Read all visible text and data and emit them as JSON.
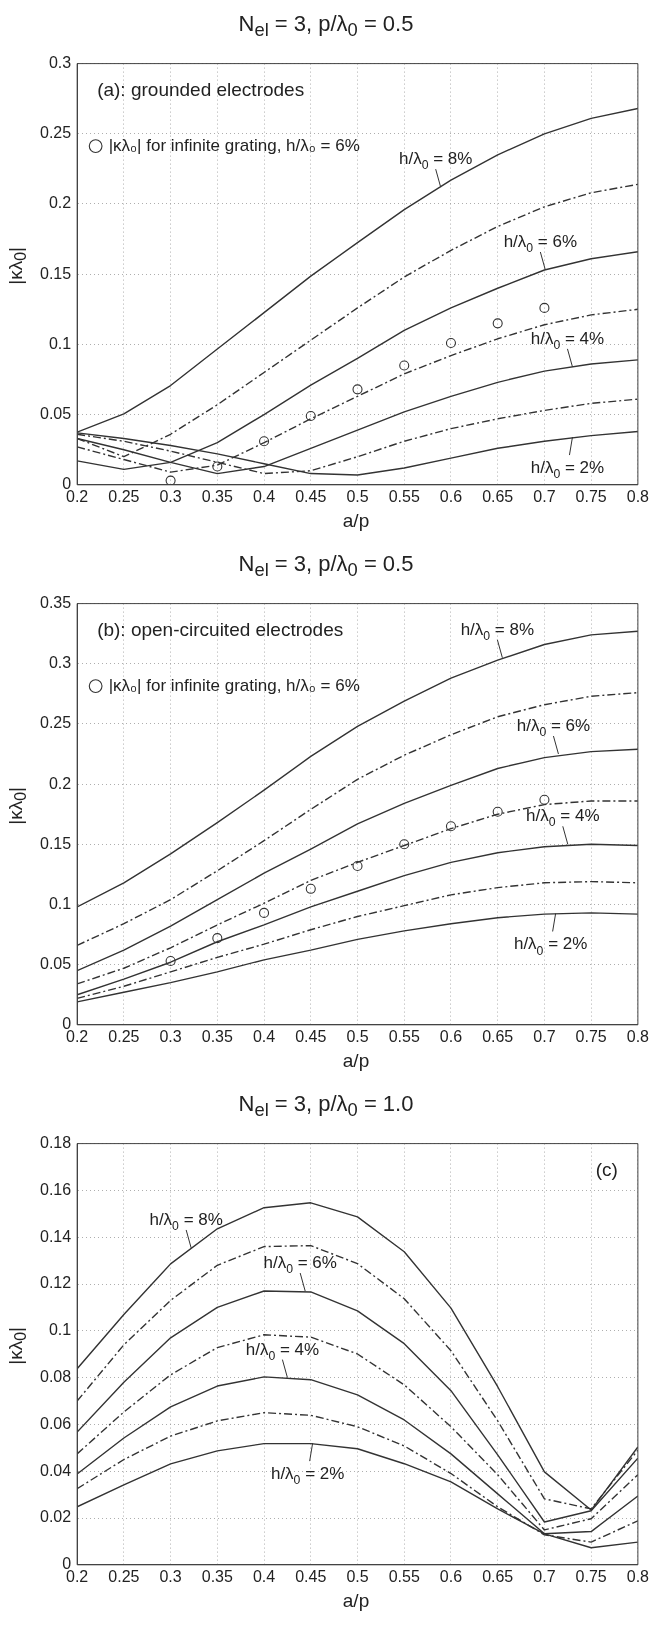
{
  "chart_data": [
    {
      "type": "line",
      "title": "N$_{el}$ = 3, p/λ$_{0}$ = 0.5",
      "xlabel": "a/p",
      "ylabel": "|κλ$_{0}$|",
      "x": [
        0.2,
        0.25,
        0.3,
        0.35,
        0.4,
        0.45,
        0.5,
        0.55,
        0.6,
        0.65,
        0.7,
        0.75,
        0.8
      ],
      "xlim": [
        0.2,
        0.8
      ],
      "xticks": [
        0.2,
        0.25,
        0.3,
        0.35,
        0.4,
        0.45,
        0.5,
        0.55,
        0.6,
        0.65,
        0.7,
        0.75,
        0.8
      ],
      "ylim": [
        0,
        0.3
      ],
      "yticks": [
        0,
        0.05,
        0.1,
        0.15,
        0.2,
        0.25,
        0.3
      ],
      "grid": true,
      "legend": "top left",
      "series": [
        {
          "color": "#333333",
          "line_style": "solid",
          "values": [
            0.0375,
            0.0505,
            0.0707,
            0.0967,
            0.1226,
            0.1486,
            0.1725,
            0.196,
            0.217,
            0.235,
            0.25,
            0.261,
            0.268
          ]
        },
        {
          "color": "#333333",
          "line_style": "dashed",
          "values": [
            0.033,
            0.02,
            0.036,
            0.057,
            0.08,
            0.103,
            0.126,
            0.148,
            0.167,
            0.184,
            0.198,
            0.208,
            0.214
          ]
        },
        {
          "color": "#333333",
          "line_style": "solid",
          "values": [
            0.017,
            0.011,
            0.016,
            0.03,
            0.05,
            0.071,
            0.09,
            0.11,
            0.126,
            0.14,
            0.153,
            0.161,
            0.166
          ]
        },
        {
          "color": "#333333",
          "line_style": "dashed",
          "values": [
            0.027,
            0.018,
            0.009,
            0.014,
            0.03,
            0.047,
            0.063,
            0.079,
            0.092,
            0.104,
            0.114,
            0.121,
            0.125
          ]
        },
        {
          "color": "#333333",
          "line_style": "solid",
          "values": [
            0.033,
            0.025,
            0.016,
            0.008,
            0.013,
            0.026,
            0.039,
            0.052,
            0.063,
            0.073,
            0.081,
            0.086,
            0.089
          ]
        },
        {
          "color": "#333333",
          "line_style": "dashed",
          "values": [
            0.036,
            0.031,
            0.024,
            0.016,
            0.008,
            0.01,
            0.02,
            0.031,
            0.04,
            0.047,
            0.053,
            0.058,
            0.061
          ]
        },
        {
          "color": "#333333",
          "line_style": "solid",
          "values": [
            0.037,
            0.033,
            0.028,
            0.022,
            0.015,
            0.008,
            0.007,
            0.012,
            0.019,
            0.026,
            0.031,
            0.035,
            0.038
          ]
        },
        {
          "type": "scatter",
          "name": "|κλ₀| for infinite grating, h/λ₀ = 6%",
          "color": "#333333",
          "marker": "circle",
          "x": [
            0.3,
            0.35,
            0.4,
            0.45,
            0.5,
            0.55,
            0.6,
            0.65,
            0.7
          ],
          "values": [
            0.003,
            0.013,
            0.031,
            0.049,
            0.068,
            0.085,
            0.101,
            0.115,
            0.126
          ]
        }
      ],
      "annotations": [
        "(a): grounded electrodes",
        {
          "text": "h/λ$_{0}$ = 8%",
          "x": 0.589,
          "y": 0.212
        },
        {
          "text": "h/λ$_{0}$ = 6%",
          "x": 0.701,
          "y": 0.153
        },
        {
          "text": "h/λ$_{0}$ = 4%",
          "x": 0.73,
          "y": 0.084
        },
        {
          "text": "h/λ$_{0}$ = 2%",
          "x": 0.73,
          "y": 0.034
        }
      ]
    },
    {
      "type": "line",
      "title": "N$_{el}$ = 3, p/λ$_{0}$ = 0.5",
      "xlabel": "a/p",
      "ylabel": "|κλ$_{0}$|",
      "x": [
        0.2,
        0.25,
        0.3,
        0.35,
        0.4,
        0.45,
        0.5,
        0.55,
        0.6,
        0.65,
        0.7,
        0.75,
        0.8
      ],
      "xlim": [
        0.2,
        0.8
      ],
      "xticks": [
        0.2,
        0.25,
        0.3,
        0.35,
        0.4,
        0.45,
        0.5,
        0.55,
        0.6,
        0.65,
        0.7,
        0.75,
        0.8
      ],
      "ylim": [
        0,
        0.35
      ],
      "yticks": [
        0,
        0.05,
        0.1,
        0.15,
        0.2,
        0.25,
        0.3,
        0.35
      ],
      "grid": true,
      "legend": "top left",
      "series": [
        {
          "color": "#333333",
          "line_style": "solid",
          "values": [
            0.098,
            0.118,
            0.142,
            0.168,
            0.195,
            0.223,
            0.248,
            0.269,
            0.288,
            0.303,
            0.316,
            0.324,
            0.327
          ]
        },
        {
          "color": "#333333",
          "line_style": "dashed",
          "values": [
            0.066,
            0.084,
            0.104,
            0.128,
            0.153,
            0.179,
            0.204,
            0.224,
            0.241,
            0.256,
            0.266,
            0.273,
            0.276
          ]
        },
        {
          "color": "#333333",
          "line_style": "solid",
          "values": [
            0.045,
            0.062,
            0.082,
            0.104,
            0.126,
            0.146,
            0.167,
            0.184,
            0.199,
            0.213,
            0.222,
            0.227,
            0.229
          ]
        },
        {
          "color": "#333333",
          "line_style": "dashed",
          "values": [
            0.034,
            0.047,
            0.064,
            0.083,
            0.101,
            0.12,
            0.135,
            0.149,
            0.163,
            0.175,
            0.183,
            0.186,
            0.186
          ]
        },
        {
          "color": "#333333",
          "line_style": "solid",
          "values": [
            0.025,
            0.038,
            0.052,
            0.069,
            0.083,
            0.098,
            0.111,
            0.124,
            0.135,
            0.143,
            0.148,
            0.15,
            0.149
          ]
        },
        {
          "color": "#333333",
          "line_style": "dashed",
          "values": [
            0.022,
            0.032,
            0.044,
            0.056,
            0.067,
            0.079,
            0.09,
            0.099,
            0.108,
            0.114,
            0.118,
            0.119,
            0.118
          ]
        },
        {
          "color": "#333333",
          "line_style": "solid",
          "values": [
            0.019,
            0.027,
            0.035,
            0.044,
            0.054,
            0.062,
            0.071,
            0.078,
            0.084,
            0.089,
            0.092,
            0.093,
            0.092
          ]
        },
        {
          "type": "scatter",
          "name": "|κλ₀| for infinite grating, h/λ₀ = 6%",
          "color": "#333333",
          "marker": "circle",
          "x": [
            0.3,
            0.35,
            0.4,
            0.45,
            0.5,
            0.55,
            0.6,
            0.65,
            0.7
          ],
          "values": [
            0.053,
            0.072,
            0.093,
            0.113,
            0.132,
            0.15,
            0.165,
            0.177,
            0.187
          ]
        }
      ],
      "annotations": [
        "(b): open-circuited electrodes",
        {
          "text": "h/λ$_{0}$ = 8%",
          "x": 0.655,
          "y": 0.305
        },
        {
          "text": "h/λ$_{0}$ = 6%",
          "x": 0.715,
          "y": 0.225
        },
        {
          "text": "h/λ$_{0}$ = 4%",
          "x": 0.725,
          "y": 0.15
        },
        {
          "text": "h/λ$_{0}$ = 2%",
          "x": 0.712,
          "y": 0.0925
        }
      ]
    },
    {
      "type": "line",
      "title": "N$_{el}$ = 3, p/λ$_{0}$ = 1.0",
      "xlabel": "a/p",
      "ylabel": "|κλ$_{0}$|",
      "x": [
        0.2,
        0.25,
        0.3,
        0.35,
        0.4,
        0.45,
        0.5,
        0.55,
        0.6,
        0.65,
        0.7,
        0.75,
        0.8
      ],
      "xlim": [
        0.2,
        0.8
      ],
      "xticks": [
        0.2,
        0.25,
        0.3,
        0.35,
        0.4,
        0.45,
        0.5,
        0.55,
        0.6,
        0.65,
        0.7,
        0.75,
        0.8
      ],
      "ylim": [
        0,
        0.18
      ],
      "yticks": [
        0,
        0.02,
        0.04,
        0.06,
        0.08,
        0.1,
        0.12,
        0.14,
        0.16,
        0.18
      ],
      "grid": true,
      "series": [
        {
          "color": "#333333",
          "line_style": "solid",
          "values": [
            0.0838,
            0.107,
            0.1286,
            0.1436,
            0.1526,
            0.1547,
            0.1487,
            0.1338,
            0.1097,
            0.0761,
            0.0397,
            0.0234,
            0.0504
          ]
        },
        {
          "color": "#333333",
          "line_style": "dashed",
          "values": [
            0.07,
            0.094,
            0.113,
            0.128,
            0.136,
            0.1364,
            0.1287,
            0.1137,
            0.0915,
            0.0615,
            0.0282,
            0.0239,
            0.049
          ]
        },
        {
          "color": "#333333",
          "line_style": "solid",
          "values": [
            0.0567,
            0.078,
            0.097,
            0.11,
            0.117,
            0.1166,
            0.1085,
            0.0945,
            0.0744,
            0.047,
            0.0183,
            0.0231,
            0.0456
          ]
        },
        {
          "color": "#333333",
          "line_style": "dashed",
          "values": [
            0.0474,
            0.0653,
            0.0812,
            0.0928,
            0.0983,
            0.0973,
            0.0901,
            0.0769,
            0.059,
            0.0385,
            0.0149,
            0.0197,
            0.0385
          ]
        },
        {
          "color": "#333333",
          "line_style": "solid",
          "values": [
            0.0388,
            0.0542,
            0.0675,
            0.0764,
            0.0803,
            0.0791,
            0.0726,
            0.0619,
            0.0474,
            0.0303,
            0.0133,
            0.0142,
            0.0294
          ]
        },
        {
          "color": "#333333",
          "line_style": "dashed",
          "values": [
            0.0325,
            0.045,
            0.055,
            0.0615,
            0.065,
            0.0639,
            0.059,
            0.0508,
            0.039,
            0.0248,
            0.0128,
            0.0097,
            0.0188
          ]
        },
        {
          "color": "#333333",
          "line_style": "solid",
          "values": [
            0.0248,
            0.0342,
            0.0431,
            0.0487,
            0.0518,
            0.0518,
            0.0496,
            0.0432,
            0.0354,
            0.0239,
            0.0132,
            0.0073,
            0.0097
          ]
        }
      ],
      "annotations": [
        "(c)",
        {
          "text": "h/λ$_{0}$ = 8%",
          "x": 0.322,
          "y": 0.1354
        },
        {
          "text": "h/λ$_{0}$ = 6%",
          "x": 0.444,
          "y": 0.117
        },
        {
          "text": "h/λ$_{0}$ = 4%",
          "x": 0.425,
          "y": 0.08
        },
        {
          "text": "h/λ$_{0}$ = 2%",
          "x": 0.452,
          "y": 0.052
        }
      ]
    }
  ]
}
